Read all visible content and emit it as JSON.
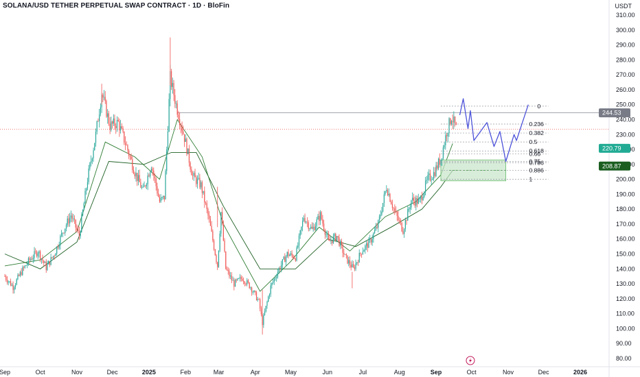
{
  "header": {
    "title": "SOLANA/USD TETHER PERPETUAL SWAP CONTRACT · 1D · BloFin",
    "currency": "USDT"
  },
  "colors": {
    "up": "#26a69a",
    "down": "#ef5350",
    "projection": "#4c52d9",
    "fib_line": "#9598a1",
    "zone": "#c8e6c9",
    "ema_fast": "#2e7d32",
    "ema_slow": "#1b5e20",
    "tag_gray": "#787b86",
    "tag_green": "#22ab94",
    "tag_dark_green": "#1b5e20"
  },
  "chart_data": {
    "type": "candlestick",
    "timeframe": "1D",
    "ylim": [
      80,
      310
    ],
    "y_ticks": [
      80,
      90,
      100,
      110,
      120,
      130,
      140,
      150,
      160,
      170,
      180,
      190,
      200,
      210,
      220,
      230,
      240,
      250,
      260,
      270,
      280,
      290,
      300,
      310
    ],
    "x_ticks": [
      {
        "label": "Sep",
        "date": "2024-09-01",
        "bold": false
      },
      {
        "label": "Oct",
        "date": "2024-10-01",
        "bold": false
      },
      {
        "label": "Nov",
        "date": "2024-11-01",
        "bold": false
      },
      {
        "label": "Dec",
        "date": "2024-12-01",
        "bold": false
      },
      {
        "label": "2025",
        "date": "2025-01-01",
        "bold": true
      },
      {
        "label": "Feb",
        "date": "2025-02-01",
        "bold": false
      },
      {
        "label": "Mar",
        "date": "2025-03-01",
        "bold": false
      },
      {
        "label": "Apr",
        "date": "2025-04-01",
        "bold": false
      },
      {
        "label": "May",
        "date": "2025-05-01",
        "bold": false
      },
      {
        "label": "Jun",
        "date": "2025-06-01",
        "bold": false
      },
      {
        "label": "Jul",
        "date": "2025-07-01",
        "bold": false
      },
      {
        "label": "Aug",
        "date": "2025-08-01",
        "bold": false
      },
      {
        "label": "Sep",
        "date": "2025-09-01",
        "bold": true
      },
      {
        "label": "Oct",
        "date": "2025-10-01",
        "bold": false
      },
      {
        "label": "Nov",
        "date": "2025-11-01",
        "bold": false
      },
      {
        "label": "Dec",
        "date": "2025-12-01",
        "bold": false
      },
      {
        "label": "2026",
        "date": "2026-01-01",
        "bold": true
      }
    ],
    "price_path": [
      [
        "2024-09-01",
        135
      ],
      [
        "2024-09-08",
        128
      ],
      [
        "2024-09-15",
        138
      ],
      [
        "2024-09-22",
        146
      ],
      [
        "2024-09-29",
        152
      ],
      [
        "2024-10-06",
        141
      ],
      [
        "2024-10-13",
        150
      ],
      [
        "2024-10-20",
        165
      ],
      [
        "2024-10-27",
        176
      ],
      [
        "2024-11-03",
        162
      ],
      [
        "2024-11-10",
        200
      ],
      [
        "2024-11-17",
        230
      ],
      [
        "2024-11-22",
        258
      ],
      [
        "2024-11-29",
        236
      ],
      [
        "2024-12-06",
        238
      ],
      [
        "2024-12-13",
        222
      ],
      [
        "2024-12-20",
        205
      ],
      [
        "2024-12-27",
        192
      ],
      [
        "2025-01-03",
        210
      ],
      [
        "2025-01-10",
        185
      ],
      [
        "2025-01-14",
        188
      ],
      [
        "2025-01-19",
        268
      ],
      [
        "2025-01-24",
        250
      ],
      [
        "2025-01-31",
        228
      ],
      [
        "2025-02-07",
        202
      ],
      [
        "2025-02-14",
        196
      ],
      [
        "2025-02-21",
        172
      ],
      [
        "2025-02-28",
        142
      ],
      [
        "2025-03-03",
        178
      ],
      [
        "2025-03-07",
        140
      ],
      [
        "2025-03-14",
        130
      ],
      [
        "2025-03-21",
        134
      ],
      [
        "2025-03-28",
        128
      ],
      [
        "2025-04-04",
        118
      ],
      [
        "2025-04-07",
        104
      ],
      [
        "2025-04-14",
        128
      ],
      [
        "2025-04-21",
        140
      ],
      [
        "2025-04-28",
        150
      ],
      [
        "2025-05-05",
        148
      ],
      [
        "2025-05-12",
        175
      ],
      [
        "2025-05-19",
        166
      ],
      [
        "2025-05-26",
        176
      ],
      [
        "2025-06-02",
        158
      ],
      [
        "2025-06-09",
        162
      ],
      [
        "2025-06-16",
        148
      ],
      [
        "2025-06-23",
        140
      ],
      [
        "2025-06-30",
        152
      ],
      [
        "2025-07-07",
        158
      ],
      [
        "2025-07-14",
        170
      ],
      [
        "2025-07-21",
        195
      ],
      [
        "2025-07-28",
        178
      ],
      [
        "2025-08-04",
        166
      ],
      [
        "2025-08-11",
        186
      ],
      [
        "2025-08-18",
        185
      ],
      [
        "2025-08-25",
        200
      ],
      [
        "2025-08-30",
        204
      ],
      [
        "2025-09-05",
        214
      ],
      [
        "2025-09-10",
        232
      ],
      [
        "2025-09-14",
        242
      ],
      [
        "2025-09-16",
        238
      ],
      [
        "2025-09-18",
        234
      ]
    ],
    "ema_fast_path": [
      [
        "2024-09-01",
        142
      ],
      [
        "2024-10-01",
        146
      ],
      [
        "2024-11-01",
        165
      ],
      [
        "2024-11-25",
        225
      ],
      [
        "2024-12-20",
        215
      ],
      [
        "2025-01-10",
        200
      ],
      [
        "2025-01-25",
        240
      ],
      [
        "2025-02-15",
        215
      ],
      [
        "2025-03-05",
        170
      ],
      [
        "2025-04-05",
        125
      ],
      [
        "2025-05-01",
        145
      ],
      [
        "2025-05-25",
        168
      ],
      [
        "2025-06-20",
        152
      ],
      [
        "2025-07-20",
        175
      ],
      [
        "2025-08-15",
        185
      ],
      [
        "2025-09-05",
        203
      ],
      [
        "2025-09-15",
        224
      ]
    ],
    "ema_slow_path": [
      [
        "2024-09-01",
        150
      ],
      [
        "2024-10-01",
        140
      ],
      [
        "2024-11-01",
        158
      ],
      [
        "2024-11-28",
        212
      ],
      [
        "2024-12-28",
        210
      ],
      [
        "2025-01-20",
        218
      ],
      [
        "2025-02-10",
        218
      ],
      [
        "2025-03-05",
        182
      ],
      [
        "2025-04-05",
        140
      ],
      [
        "2025-05-05",
        140
      ],
      [
        "2025-06-01",
        160
      ],
      [
        "2025-06-25",
        155
      ],
      [
        "2025-07-25",
        168
      ],
      [
        "2025-08-20",
        180
      ],
      [
        "2025-09-05",
        195
      ],
      [
        "2025-09-15",
        206
      ]
    ],
    "horizontal_line": {
      "date_from": "2025-01-25",
      "value": 244.53
    },
    "current_price_line": {
      "value": 233.5
    },
    "fibonacci": {
      "date_from": "2025-09-05",
      "date_to": "2025-12-05",
      "levels": [
        {
          "label": "0",
          "value": 249
        },
        {
          "label": "0.236",
          "value": 237
        },
        {
          "label": "0.382",
          "value": 231
        },
        {
          "label": "0.5",
          "value": 225
        },
        {
          "label": "0.618",
          "value": 219
        },
        {
          "label": "0.66",
          "value": 217
        },
        {
          "label": "0.75",
          "value": 212
        },
        {
          "label": "0.786",
          "value": 211
        },
        {
          "label": "0.886",
          "value": 206
        },
        {
          "label": "1",
          "value": 200
        }
      ]
    },
    "zone_box": {
      "date_from": "2025-09-05",
      "date_to": "2025-10-30",
      "top": 213,
      "bottom": 199
    },
    "zone_box_inner": {
      "date_from": "2025-09-12",
      "date_to": "2025-10-30",
      "top": 206,
      "bottom": 205
    },
    "projection_path": [
      [
        "2025-09-21",
        243
      ],
      [
        "2025-09-24",
        254
      ],
      [
        "2025-09-28",
        234
      ],
      [
        "2025-09-30",
        246
      ],
      [
        "2025-10-03",
        226
      ],
      [
        "2025-10-14",
        238
      ],
      [
        "2025-10-20",
        222
      ],
      [
        "2025-10-25",
        232
      ],
      [
        "2025-10-30",
        212
      ],
      [
        "2025-11-06",
        230
      ],
      [
        "2025-11-08",
        226
      ],
      [
        "2025-11-18",
        250
      ]
    ],
    "price_tags": [
      {
        "text": "244.53",
        "value": 244.53,
        "color": "#787b86"
      },
      {
        "text": "220.79",
        "value": 220.79,
        "color": "#22ab94"
      },
      {
        "text": "208.87",
        "value": 208.87,
        "color": "#1b5e20"
      }
    ],
    "event_marker": {
      "date": "2025-09-30",
      "icon": "lightning-icon"
    }
  }
}
